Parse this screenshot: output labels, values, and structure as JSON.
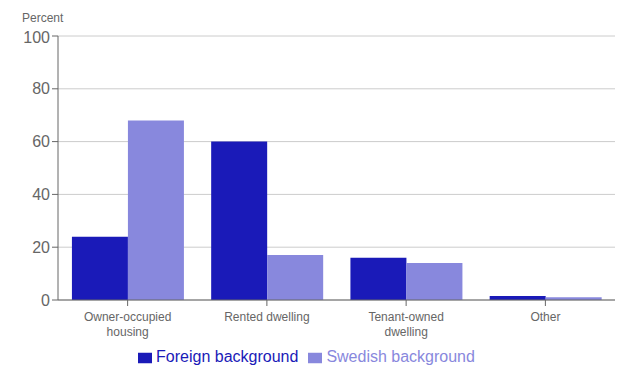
{
  "chart_data": {
    "type": "bar",
    "ylabel": "Percent",
    "categories": [
      "Owner-occupied\nhousing",
      "Rented dwelling",
      "Tenant-owned\ndwelling",
      "Other"
    ],
    "series": [
      {
        "name": "Foreign background",
        "color": "#1a1ab8",
        "values": [
          24,
          60,
          16,
          1.5
        ]
      },
      {
        "name": "Swedish background",
        "color": "#8888dd",
        "values": [
          68,
          17,
          14,
          1
        ]
      }
    ],
    "ylim": [
      0,
      100
    ],
    "yticks": [
      0,
      20,
      40,
      60,
      80,
      100
    ],
    "grid": true,
    "legend": "bottom"
  }
}
